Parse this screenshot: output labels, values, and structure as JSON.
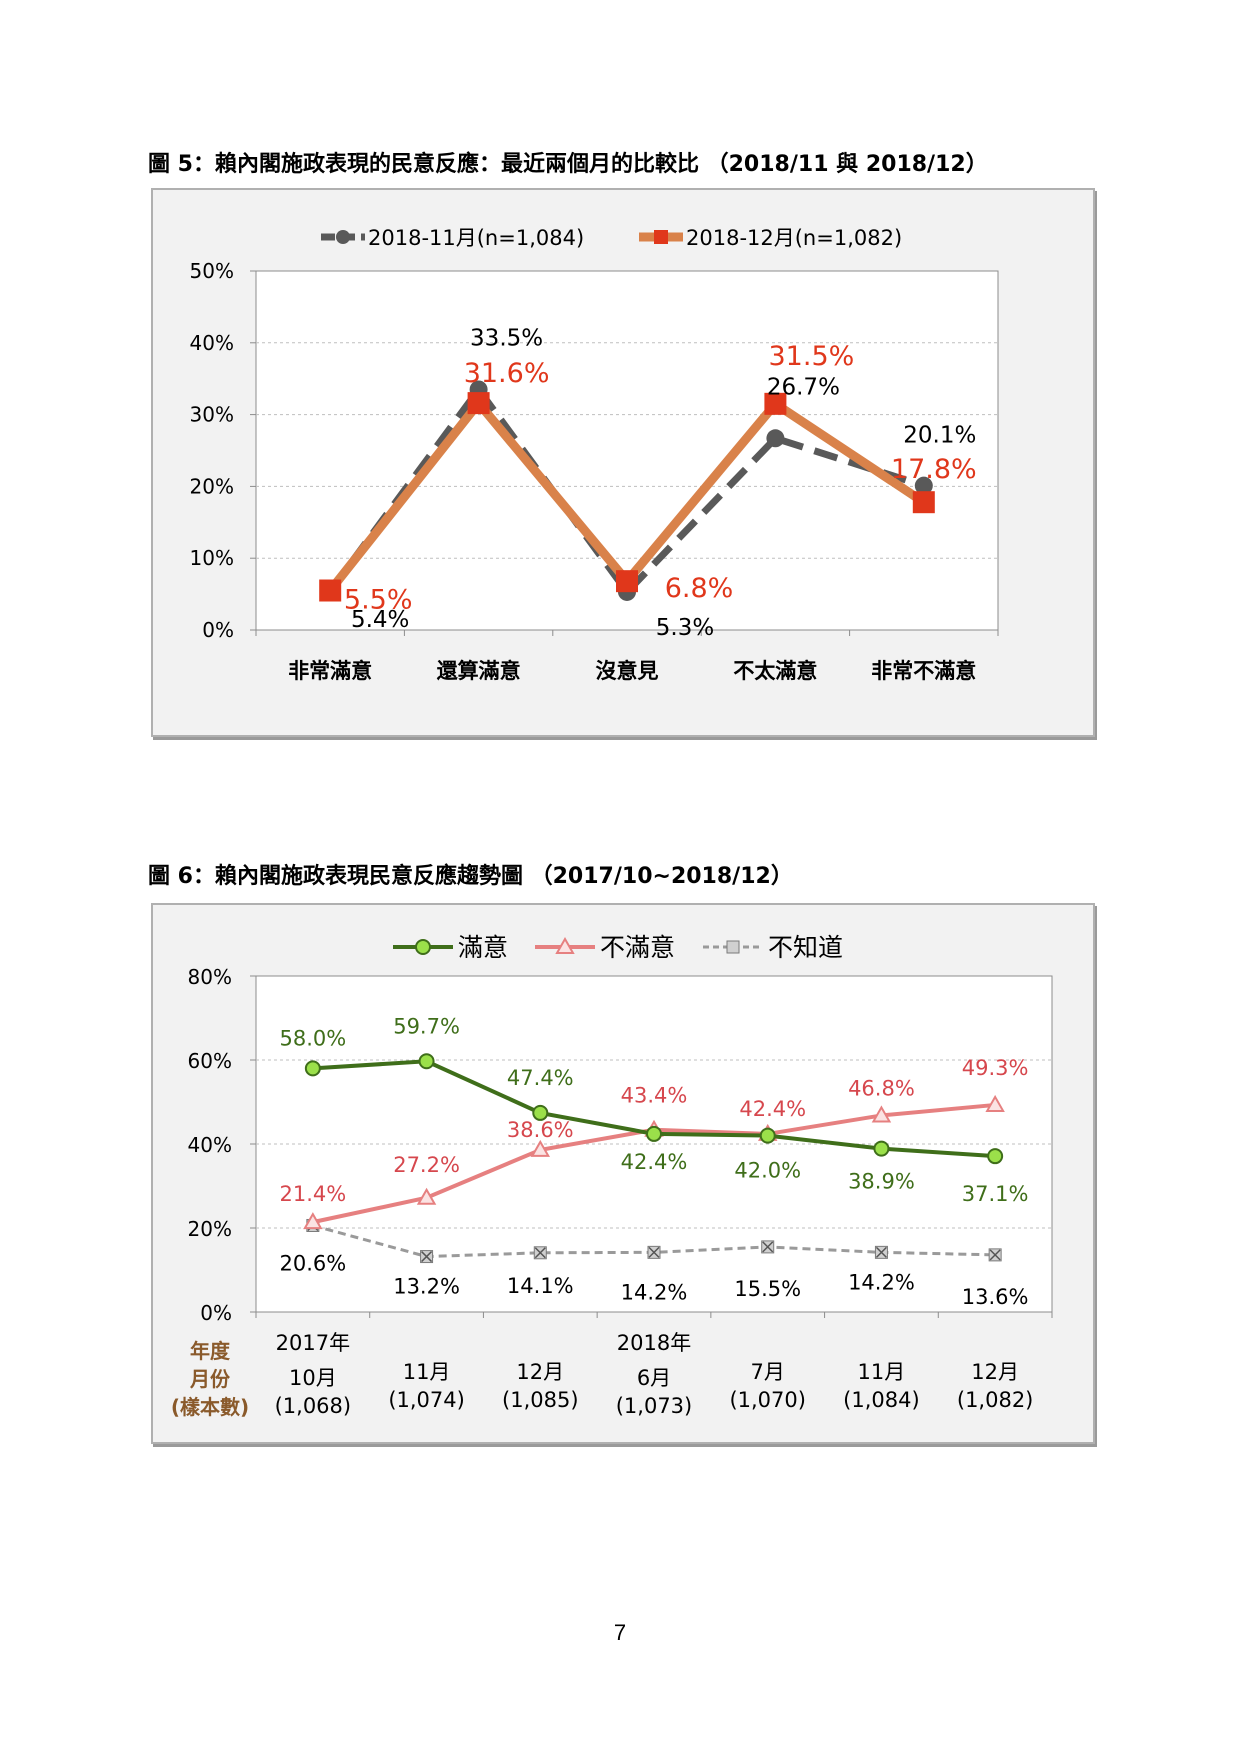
{
  "figure5": {
    "title": "圖 5：賴內閣施政表現的民意反應：最近兩個月的比較比 （2018/11 與 2018/12）"
  },
  "figure6": {
    "title": "圖 6：賴內閣施政表現民意反應趨勢圖 （2017/10~2018/12）"
  },
  "chart_data": [
    {
      "type": "line",
      "categories": [
        "非常滿意",
        "還算滿意",
        "沒意見",
        "不太滿意",
        "非常不滿意"
      ],
      "ylim": [
        0,
        50
      ],
      "yticks": [
        "0%",
        "10%",
        "20%",
        "30%",
        "40%",
        "50%"
      ],
      "grid": true,
      "legend_position": "top",
      "series": [
        {
          "name": "2018-11月(n=1,084)",
          "values": [
            5.4,
            33.5,
            5.3,
            26.7,
            20.1
          ],
          "labels": [
            "5.4%",
            "33.5%",
            "5.3%",
            "26.7%",
            "20.1%"
          ],
          "color": "#595959",
          "style": "dashed-circle"
        },
        {
          "name": "2018-12月(n=1,082)",
          "values": [
            5.5,
            31.6,
            6.8,
            31.5,
            17.8
          ],
          "labels": [
            "5.5%",
            "31.6%",
            "6.8%",
            "31.5%",
            "17.8%"
          ],
          "color": "#d9824a",
          "marker_color": "#e0371b",
          "label_color": "#e0371b",
          "style": "solid-square"
        }
      ]
    },
    {
      "type": "line",
      "categories": [
        {
          "year": "2017年",
          "month": "10月",
          "n": "(1,068)"
        },
        {
          "year": "",
          "month": "11月",
          "n": "(1,074)"
        },
        {
          "year": "",
          "month": "12月",
          "n": "(1,085)"
        },
        {
          "year": "2018年",
          "month": "6月",
          "n": "(1,073)"
        },
        {
          "year": "",
          "month": "7月",
          "n": "(1,070)"
        },
        {
          "year": "",
          "month": "11月",
          "n": "(1,084)"
        },
        {
          "year": "",
          "month": "12月",
          "n": "(1,082)"
        }
      ],
      "row_labels": [
        "年度",
        "月份",
        "(樣本數)"
      ],
      "ylim": [
        0,
        80
      ],
      "yticks": [
        "0%",
        "20%",
        "40%",
        "60%",
        "80%"
      ],
      "grid": true,
      "legend_position": "top",
      "series": [
        {
          "name": "滿意",
          "values": [
            58.0,
            59.7,
            47.4,
            42.4,
            42.0,
            38.9,
            37.1
          ],
          "labels": [
            "58.0%",
            "59.7%",
            "47.4%",
            "42.4%",
            "42.0%",
            "38.9%",
            "37.1%"
          ],
          "color": "#3f6e1a",
          "marker_color": "#9be04a",
          "style": "solid-circle"
        },
        {
          "name": "不滿意",
          "values": [
            21.4,
            27.2,
            38.6,
            43.4,
            42.4,
            46.8,
            49.3
          ],
          "labels": [
            "21.4%",
            "27.2%",
            "38.6%",
            "43.4%",
            "42.4%",
            "46.8%",
            "49.3%"
          ],
          "color": "#e68080",
          "label_color": "#d6474d",
          "style": "solid-triangle"
        },
        {
          "name": "不知道",
          "values": [
            20.6,
            13.2,
            14.1,
            14.2,
            15.5,
            14.2,
            13.6
          ],
          "labels": [
            "20.6%",
            "13.2%",
            "14.1%",
            "14.2%",
            "15.5%",
            "14.2%",
            "13.6%"
          ],
          "color": "#9a9a9a",
          "style": "dashed-x"
        }
      ]
    }
  ],
  "page_number": "7"
}
